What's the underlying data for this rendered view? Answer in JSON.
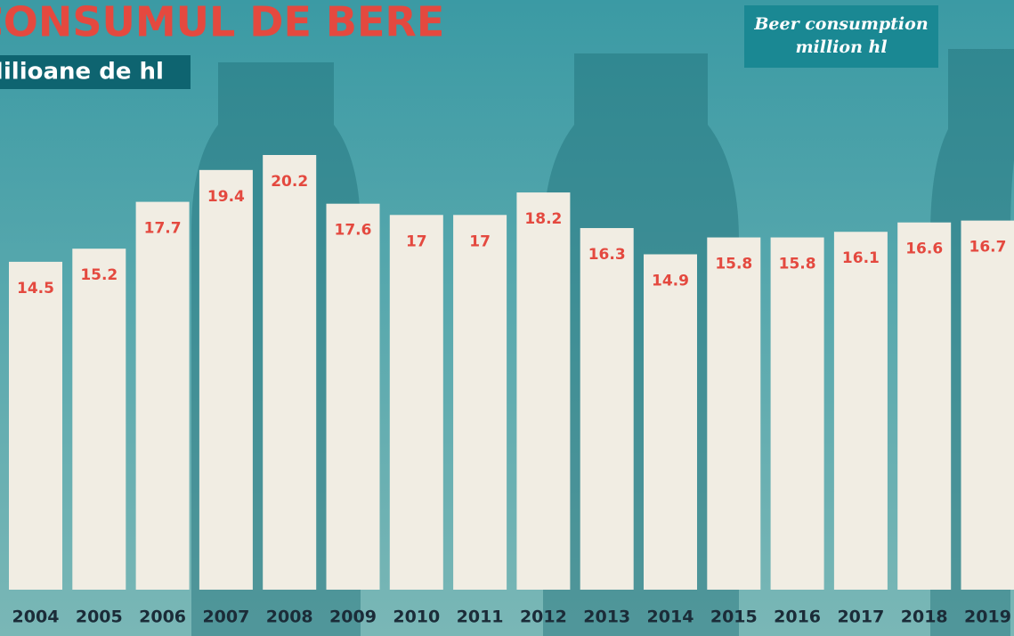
{
  "chart_data": {
    "type": "bar",
    "title": "CONSUMUL DE BERE",
    "subtitle": "Milioane de hl",
    "annotation": [
      "Beer consumption",
      "million hl"
    ],
    "categories": [
      "2004",
      "2005",
      "2006",
      "2007",
      "2008",
      "2009",
      "2010",
      "2011",
      "2012",
      "2013",
      "2014",
      "2015",
      "2016",
      "2017",
      "2018",
      "2019"
    ],
    "values": [
      14.5,
      15.2,
      17.7,
      19.4,
      20.2,
      17.6,
      17,
      17,
      18.2,
      16.3,
      14.9,
      15.8,
      15.8,
      16.1,
      16.6,
      16.7
    ],
    "color": "#f1ede3",
    "label_color": "#e4493f",
    "ylim": [
      -3,
      21
    ]
  }
}
